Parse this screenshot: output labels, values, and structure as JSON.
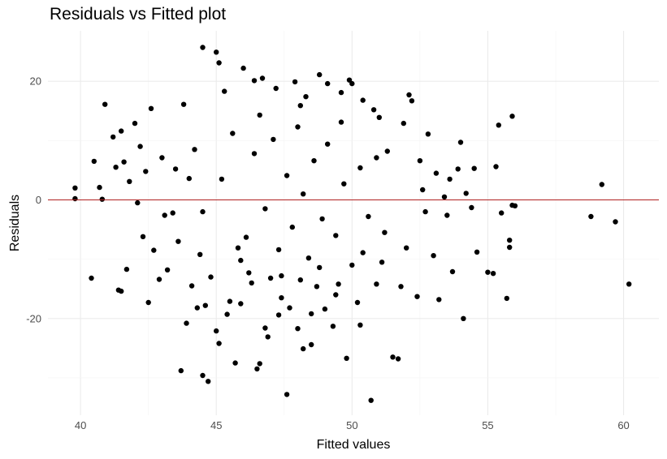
{
  "chart_data": {
    "type": "scatter",
    "title": "Residuals vs Fitted plot",
    "xlabel": "Fitted values",
    "ylabel": "Residuals",
    "xlim": [
      38.8,
      61.3
    ],
    "ylim": [
      -36.3,
      28.5
    ],
    "x_ticks": [
      40,
      45,
      50,
      55,
      60
    ],
    "x_tick_labels": [
      "40",
      "45",
      "50",
      "55",
      "60"
    ],
    "y_ticks": [
      -20,
      0,
      20
    ],
    "y_tick_labels": [
      "-20",
      "0",
      "20"
    ],
    "grid": true,
    "reference_line": {
      "y": 0,
      "color": "#b22222"
    },
    "point_color": "#000000",
    "points": [
      [
        39.8,
        2.0
      ],
      [
        39.8,
        0.2
      ],
      [
        40.4,
        -13.2
      ],
      [
        40.5,
        6.5
      ],
      [
        40.7,
        2.1
      ],
      [
        40.8,
        0.1
      ],
      [
        40.9,
        16.1
      ],
      [
        41.2,
        10.6
      ],
      [
        41.3,
        5.5
      ],
      [
        41.4,
        -15.2
      ],
      [
        41.5,
        11.6
      ],
      [
        41.5,
        -15.4
      ],
      [
        41.6,
        6.4
      ],
      [
        41.7,
        -11.7
      ],
      [
        41.8,
        3.1
      ],
      [
        42.0,
        12.9
      ],
      [
        42.1,
        -0.5
      ],
      [
        42.2,
        9.0
      ],
      [
        42.3,
        -6.2
      ],
      [
        42.4,
        4.8
      ],
      [
        42.5,
        -17.3
      ],
      [
        42.6,
        15.4
      ],
      [
        42.7,
        -8.5
      ],
      [
        42.9,
        -13.4
      ],
      [
        43.0,
        7.1
      ],
      [
        43.1,
        -2.6
      ],
      [
        43.2,
        -11.8
      ],
      [
        43.4,
        -2.2
      ],
      [
        43.5,
        5.2
      ],
      [
        43.6,
        -7.0
      ],
      [
        43.7,
        -28.8
      ],
      [
        43.8,
        16.1
      ],
      [
        43.9,
        -20.8
      ],
      [
        44.0,
        3.6
      ],
      [
        44.1,
        -14.5
      ],
      [
        44.2,
        8.5
      ],
      [
        44.3,
        -18.2
      ],
      [
        44.4,
        -9.2
      ],
      [
        44.5,
        25.7
      ],
      [
        44.5,
        -29.6
      ],
      [
        44.6,
        -17.8
      ],
      [
        44.7,
        -30.6
      ],
      [
        44.8,
        -13.0
      ],
      [
        45.0,
        -22.1
      ],
      [
        45.0,
        24.9
      ],
      [
        45.1,
        23.1
      ],
      [
        45.1,
        -24.2
      ],
      [
        45.3,
        18.3
      ],
      [
        45.4,
        -19.3
      ],
      [
        45.5,
        -17.1
      ],
      [
        45.7,
        -27.5
      ],
      [
        45.8,
        -8.1
      ],
      [
        45.9,
        -17.5
      ],
      [
        46.0,
        22.2
      ],
      [
        46.2,
        -12.3
      ],
      [
        46.3,
        -14.0
      ],
      [
        46.4,
        20.1
      ],
      [
        46.5,
        -28.5
      ],
      [
        46.6,
        -27.6
      ],
      [
        46.7,
        20.5
      ],
      [
        46.8,
        -21.6
      ],
      [
        46.9,
        -23.1
      ],
      [
        47.0,
        -13.2
      ],
      [
        47.2,
        18.8
      ],
      [
        47.3,
        -19.4
      ],
      [
        47.4,
        -16.5
      ],
      [
        47.6,
        -32.8
      ],
      [
        47.7,
        -18.2
      ],
      [
        47.9,
        19.9
      ],
      [
        48.0,
        -21.7
      ],
      [
        48.1,
        -13.5
      ],
      [
        48.2,
        -25.1
      ],
      [
        48.3,
        17.4
      ],
      [
        48.5,
        -19.2
      ],
      [
        48.5,
        -24.4
      ],
      [
        48.7,
        -14.6
      ],
      [
        48.8,
        21.1
      ],
      [
        49.0,
        -18.4
      ],
      [
        49.1,
        19.6
      ],
      [
        49.3,
        -21.3
      ],
      [
        49.4,
        -16.0
      ],
      [
        49.5,
        -14.2
      ],
      [
        49.6,
        18.1
      ],
      [
        49.8,
        -26.7
      ],
      [
        49.9,
        20.2
      ],
      [
        50.0,
        19.6
      ],
      [
        50.2,
        -17.3
      ],
      [
        50.3,
        -21.1
      ],
      [
        50.4,
        16.8
      ],
      [
        50.7,
        -33.8
      ],
      [
        50.8,
        15.2
      ],
      [
        50.9,
        -14.2
      ],
      [
        51.0,
        13.9
      ],
      [
        51.1,
        -10.5
      ],
      [
        51.3,
        8.2
      ],
      [
        51.5,
        -26.5
      ],
      [
        51.7,
        -26.8
      ],
      [
        51.8,
        -14.6
      ],
      [
        51.9,
        12.9
      ],
      [
        52.0,
        -8.1
      ],
      [
        52.1,
        17.7
      ],
      [
        52.2,
        16.7
      ],
      [
        52.4,
        -16.3
      ],
      [
        52.5,
        6.6
      ],
      [
        52.6,
        1.7
      ],
      [
        52.7,
        -2.0
      ],
      [
        52.8,
        11.1
      ],
      [
        53.0,
        -9.4
      ],
      [
        53.1,
        4.5
      ],
      [
        53.2,
        -16.8
      ],
      [
        53.4,
        0.5
      ],
      [
        53.5,
        -2.6
      ],
      [
        53.6,
        3.5
      ],
      [
        53.7,
        -12.1
      ],
      [
        53.9,
        5.2
      ],
      [
        54.0,
        9.7
      ],
      [
        54.1,
        -20.0
      ],
      [
        54.2,
        1.1
      ],
      [
        54.4,
        -1.3
      ],
      [
        54.5,
        5.3
      ],
      [
        54.6,
        -8.8
      ],
      [
        55.0,
        -12.2
      ],
      [
        55.2,
        -12.4
      ],
      [
        55.3,
        5.6
      ],
      [
        55.4,
        12.6
      ],
      [
        55.5,
        -2.2
      ],
      [
        55.7,
        -16.6
      ],
      [
        55.8,
        -6.8
      ],
      [
        55.8,
        -8.0
      ],
      [
        55.9,
        14.1
      ],
      [
        55.9,
        -0.9
      ],
      [
        56.0,
        -1.0
      ],
      [
        58.8,
        -2.8
      ],
      [
        59.2,
        2.6
      ],
      [
        59.7,
        -3.7
      ],
      [
        60.2,
        -14.2
      ],
      [
        44.5,
        -2.0
      ],
      [
        45.2,
        3.5
      ],
      [
        45.6,
        11.2
      ],
      [
        46.1,
        -6.3
      ],
      [
        46.4,
        7.8
      ],
      [
        46.8,
        -1.5
      ],
      [
        47.1,
        10.2
      ],
      [
        47.3,
        -8.4
      ],
      [
        47.6,
        4.1
      ],
      [
        47.8,
        -4.6
      ],
      [
        48.0,
        12.3
      ],
      [
        48.2,
        1.0
      ],
      [
        48.4,
        -9.8
      ],
      [
        48.6,
        6.6
      ],
      [
        48.9,
        -3.2
      ],
      [
        49.1,
        9.4
      ],
      [
        49.4,
        -6.0
      ],
      [
        49.7,
        2.7
      ],
      [
        50.0,
        -11.0
      ],
      [
        50.3,
        5.4
      ],
      [
        50.6,
        -2.8
      ],
      [
        50.9,
        7.1
      ],
      [
        51.2,
        -5.5
      ],
      [
        45.9,
        -10.2
      ],
      [
        46.6,
        14.3
      ],
      [
        47.4,
        -12.8
      ],
      [
        48.1,
        15.9
      ],
      [
        48.8,
        -11.4
      ],
      [
        49.6,
        13.1
      ],
      [
        50.4,
        -8.9
      ]
    ]
  }
}
